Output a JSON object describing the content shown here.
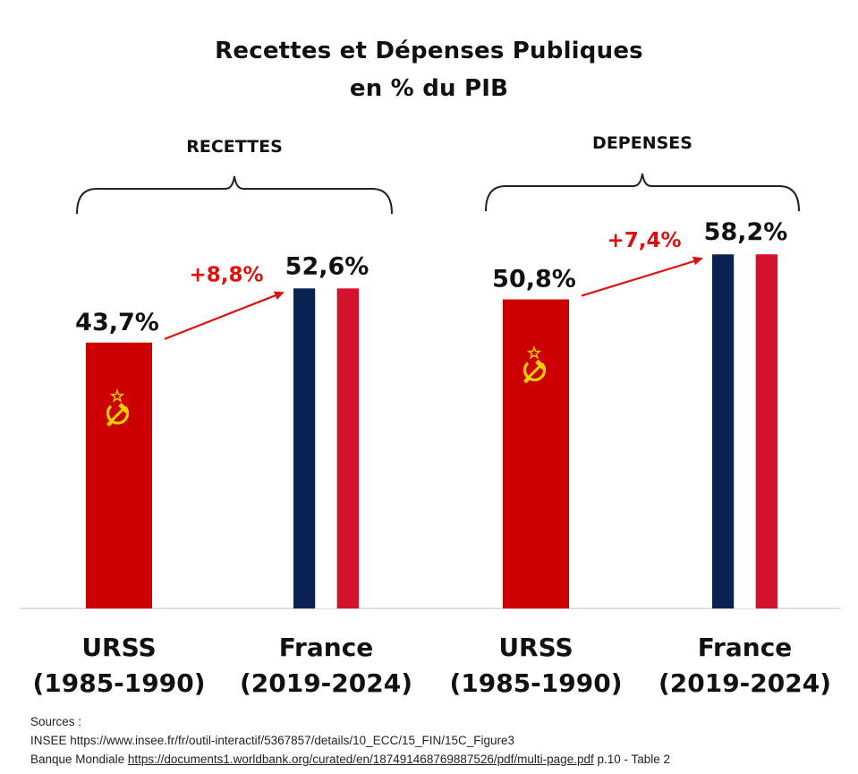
{
  "title_line1": "Recettes et Dépenses Publiques",
  "title_line2": "en % du PIB",
  "colors": {
    "urss_red": "#cc0000",
    "emblem_yellow": "#f2d000",
    "france_blue": "#0a2451",
    "france_red": "#d3132e",
    "change_red": "#e01010",
    "axis": "#cccccc"
  },
  "chart_data": {
    "type": "bar",
    "unit": "% du PIB",
    "ylim": [
      0,
      100
    ],
    "groups": [
      {
        "label": "RECETTES",
        "bars": [
          {
            "country": "URSS",
            "period": "(1985-1990)",
            "value": 43.7,
            "value_label": "43,7%",
            "style": "urss-flag"
          },
          {
            "country": "France",
            "period": "(2019-2024)",
            "value": 52.6,
            "value_label": "52,6%",
            "style": "france-flag"
          }
        ],
        "change_label": "+8,8%"
      },
      {
        "label": "DEPENSES",
        "bars": [
          {
            "country": "URSS",
            "period": "(1985-1990)",
            "value": 50.8,
            "value_label": "50,8%",
            "style": "urss-flag"
          },
          {
            "country": "France",
            "period": "(2019-2024)",
            "value": 58.2,
            "value_label": "58,2%",
            "style": "france-flag"
          }
        ],
        "change_label": "+7,4%"
      }
    ]
  },
  "sources": {
    "heading": "Sources :",
    "line1": "INSEE https://www.insee.fr/fr/outil-interactif/5367857/details/10_ECC/15_FIN/15C_Figure3",
    "line2_prefix": "Banque Mondiale ",
    "line2_link": "https://documents1.worldbank.org/curated/en/187491468769887526/pdf/multi-page.pdf",
    "line2_suffix": " p.10 - Table 2"
  }
}
